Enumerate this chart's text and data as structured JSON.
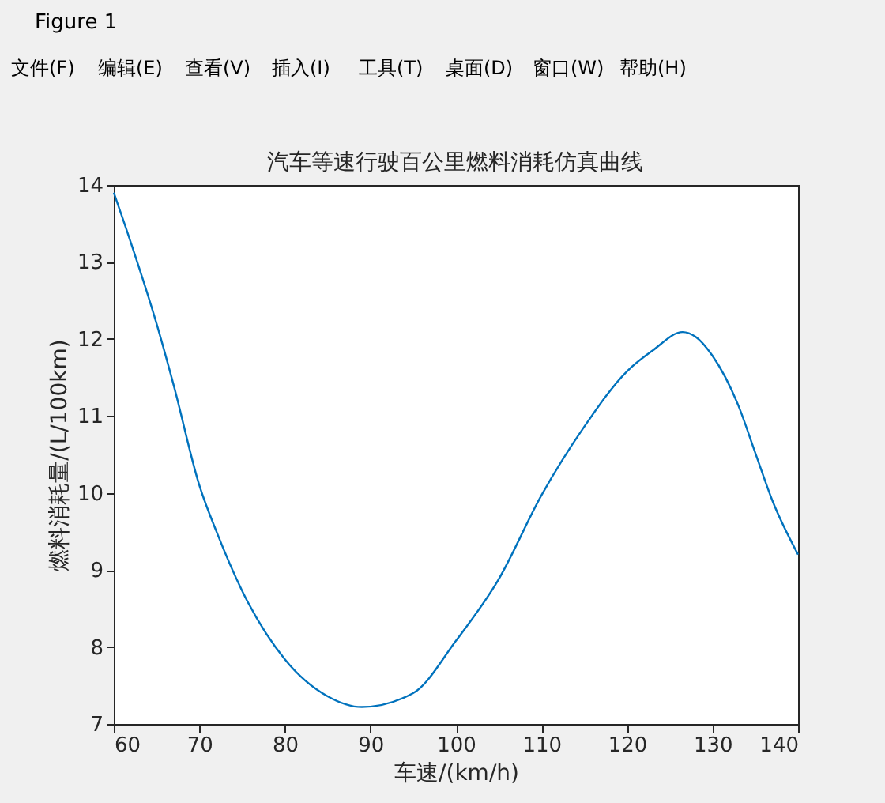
{
  "chart_data": {
    "type": "line",
    "title": "汽车等速行驶百公里燃料消耗仿真曲线",
    "xlabel": "车速/(km/h)",
    "ylabel": "燃料消耗量/(L/100km)",
    "x": [
      60,
      62,
      65,
      67,
      70,
      72,
      75,
      80,
      85,
      89,
      95,
      100,
      105,
      110,
      115,
      120,
      123,
      126.5,
      128,
      130,
      133,
      135,
      137,
      140
    ],
    "series": [
      {
        "color": "#0072bd",
        "values": [
          13.9,
          13.25,
          12.2,
          11.4,
          10.1,
          9.5,
          8.73,
          7.84,
          7.36,
          7.22,
          7.4,
          8.08,
          8.88,
          9.97,
          10.86,
          11.58,
          11.85,
          12.09,
          12.03,
          11.78,
          11.14,
          10.52,
          9.9,
          9.2
        ]
      }
    ],
    "xlim": [
      60,
      140
    ],
    "xticks": [
      60,
      70,
      80,
      90,
      100,
      110,
      120,
      130,
      140
    ],
    "ylim": [
      7,
      14
    ],
    "yticks": [
      7,
      8,
      9,
      10,
      11,
      12,
      13,
      14
    ],
    "grid": false,
    "marker": "none",
    "line_style": "solid",
    "annotations": [
      "Figure 1",
      "文件(F)",
      "编辑(E)",
      "查看(V)",
      "插入(I)",
      "工具(T)",
      "桌面(D)",
      "窗口(W)",
      "帮助(H)"
    ]
  }
}
